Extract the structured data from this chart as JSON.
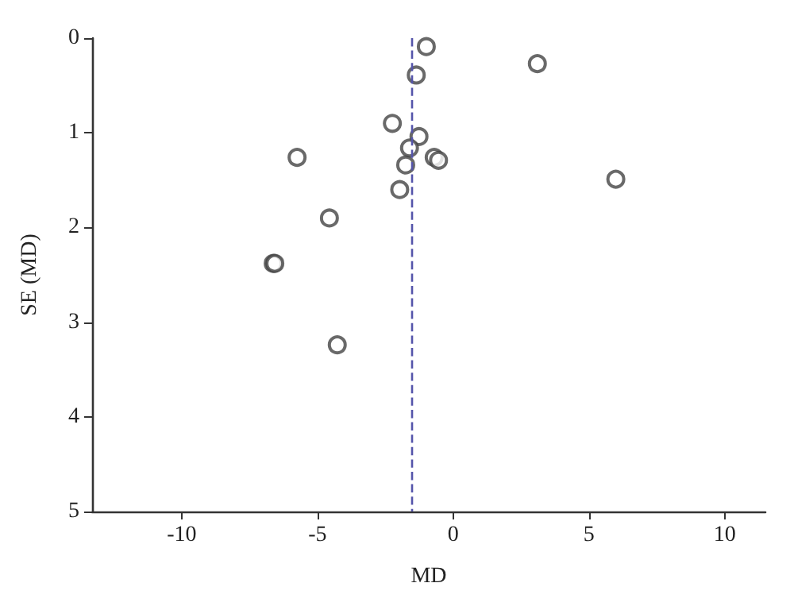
{
  "chart_data": {
    "type": "scatter",
    "xlabel": "MD",
    "ylabel": "SE (MD)",
    "x": [
      -0.99,
      3.1,
      -1.36,
      -2.24,
      -1.26,
      -1.61,
      -5.75,
      -0.7,
      -0.54,
      -1.75,
      5.99,
      -1.97,
      -4.56,
      -6.63,
      -6.57,
      -4.27
    ],
    "series": [
      {
        "color": "#444444",
        "values": [
          0.09,
          0.27,
          0.39,
          0.9,
          1.04,
          1.16,
          1.26,
          1.26,
          1.29,
          1.34,
          1.49,
          1.6,
          1.9,
          2.38,
          2.38,
          3.24
        ]
      }
    ],
    "xlim": [
      -13.3,
      11.5
    ],
    "xticks": [
      -10,
      -5,
      0,
      5,
      10
    ],
    "ylim": [
      5,
      0
    ],
    "yticks": [
      0,
      1,
      2,
      3,
      4,
      5
    ],
    "ref_lines": [
      {
        "axis": "x",
        "value": -1.5,
        "color": "#5555aa",
        "line_style": "dashed"
      }
    ],
    "marker": "circle",
    "grid": false
  }
}
